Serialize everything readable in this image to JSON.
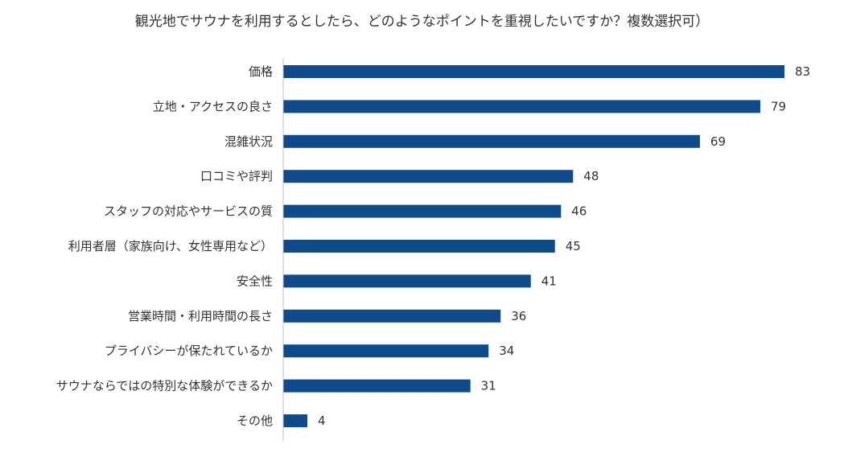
{
  "chart_data": {
    "type": "bar",
    "orientation": "horizontal",
    "title": "観光地でサウナを利用するとしたら、どのようなポイントを重視したいですか？複数選択可）",
    "categories": [
      "価格",
      "立地・アクセスの良さ",
      "混雑状況",
      "口コミや評判",
      "スタッフの対応やサービスの質",
      "利用者層（家族向け、女性専用など）",
      "安全性",
      "営業時間・利用時間の長さ",
      "プライバシーが保たれているか",
      "サウナならではの特別な体験ができるか",
      "その他"
    ],
    "values": [
      83,
      79,
      69,
      48,
      46,
      45,
      41,
      36,
      34,
      31,
      4
    ],
    "xlim": [
      0,
      83
    ],
    "bar_color": "#0e4a8c",
    "data_labels": true,
    "grid": false,
    "legend": "none"
  }
}
